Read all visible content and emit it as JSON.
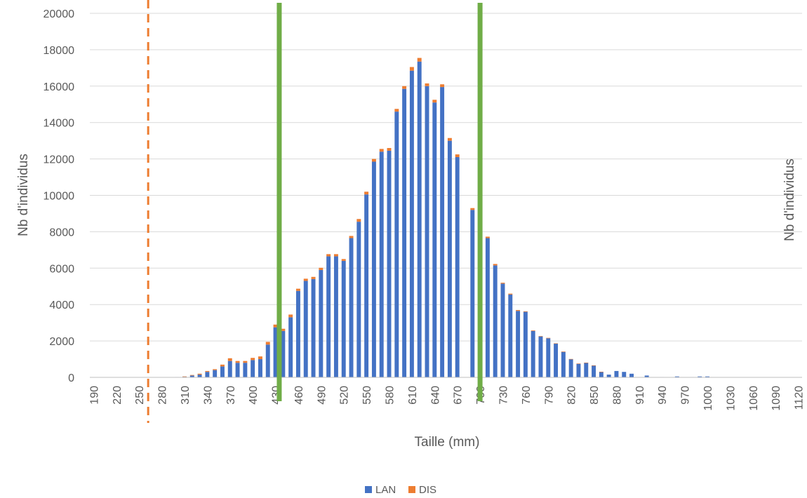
{
  "chart_data": {
    "type": "bar",
    "stacked": true,
    "xlabel": "Taille (mm)",
    "ylabel": "Nb d'individus",
    "ylabel_right": "Nb d'individus",
    "ylim": [
      0,
      20000
    ],
    "yticks": [
      0,
      2000,
      4000,
      6000,
      8000,
      10000,
      12000,
      14000,
      16000,
      18000,
      20000
    ],
    "grid": true,
    "legend_position": "bottom",
    "x_start": 190,
    "x_step": 10,
    "x_end": 1120,
    "tick_labels": [
      "190",
      "220",
      "250",
      "280",
      "310",
      "340",
      "370",
      "400",
      "430",
      "460",
      "490",
      "520",
      "550",
      "580",
      "610",
      "640",
      "670",
      "700",
      "730",
      "760",
      "790",
      "820",
      "850",
      "880",
      "910",
      "940",
      "970",
      "1000",
      "1030",
      "1060",
      "1090",
      "1120"
    ],
    "series": [
      {
        "name": "LAN",
        "color": "#4472C4",
        "values": [
          0,
          0,
          0,
          0,
          0,
          0,
          0,
          0,
          0,
          0,
          0,
          20,
          40,
          100,
          150,
          300,
          400,
          600,
          900,
          800,
          800,
          950,
          1000,
          1800,
          2750,
          2550,
          3300,
          4750,
          5300,
          5400,
          5900,
          6650,
          6650,
          6400,
          7650,
          8550,
          10050,
          11850,
          12400,
          12450,
          14600,
          15850,
          16850,
          17350,
          16000,
          15100,
          15950,
          13000,
          12100,
          0,
          9200,
          7800,
          7650,
          6150,
          5150,
          4550,
          3650,
          3600,
          2550,
          2250,
          2150,
          1850,
          1400,
          1000,
          750,
          800,
          650,
          300,
          150,
          350,
          300,
          200,
          0,
          100,
          0,
          20,
          0,
          50,
          0,
          20,
          50,
          50,
          0,
          0,
          0,
          0,
          0,
          0,
          0,
          0,
          0,
          0,
          0,
          0
        ]
      },
      {
        "name": "DIS",
        "color": "#ED7D31",
        "values": [
          0,
          0,
          0,
          0,
          0,
          0,
          0,
          0,
          0,
          0,
          0,
          0,
          10,
          30,
          50,
          50,
          50,
          100,
          150,
          100,
          100,
          120,
          150,
          150,
          150,
          120,
          150,
          120,
          120,
          120,
          120,
          120,
          120,
          100,
          120,
          150,
          150,
          150,
          150,
          150,
          150,
          150,
          200,
          200,
          150,
          150,
          150,
          150,
          150,
          0,
          100,
          80,
          80,
          80,
          50,
          50,
          50,
          30,
          30,
          20,
          20,
          20,
          20,
          10,
          10,
          10,
          10,
          10,
          0,
          0,
          0,
          0,
          0,
          0,
          0,
          0,
          0,
          0,
          0,
          0,
          0,
          0,
          0,
          0,
          0,
          0,
          0,
          0,
          0,
          0,
          0,
          0,
          0,
          0
        ]
      }
    ],
    "reference_lines": [
      {
        "x": 262,
        "color": "#ED7D31",
        "style": "dashed"
      },
      {
        "x": 435,
        "color": "#70AD47",
        "style": "solid"
      },
      {
        "x": 700,
        "color": "#70AD47",
        "style": "solid"
      }
    ]
  }
}
